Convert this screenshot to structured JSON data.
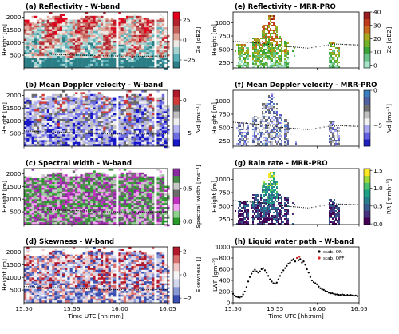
{
  "chart_data": [
    {
      "type": "heatmap",
      "title": "(a) Reflectivity - W-band",
      "ylabel": "Height [m]",
      "xlabel": "",
      "ylim": [
        0,
        2200
      ],
      "xlim": [
        "15:50",
        "16:05"
      ],
      "yticks": [
        "500",
        "1000",
        "1500",
        "2000"
      ],
      "xticks": [
        "",
        "",
        "",
        ""
      ],
      "colorbar": {
        "label": "Ze [dBZ]",
        "ticks": [
          "25",
          "0",
          "−25"
        ],
        "range": [
          -35,
          35
        ],
        "colors": [
          "#2b7e86",
          "#5ab0b8",
          "#a6d2d2",
          "#ece9e4",
          "#e0a69a",
          "#c4605a",
          "#b3232f",
          "#e3001d"
        ]
      },
      "dotted_line": {
        "x": [
          "15:50",
          "15:53",
          "15:56",
          "15:59",
          "16:02",
          "16:05"
        ],
        "y": [
          560,
          530,
          500,
          470,
          460,
          470
        ]
      }
    },
    {
      "type": "heatmap",
      "title": "(b) Mean Doppler velocity - W-band",
      "ylabel": "Height [m]",
      "xlabel": "",
      "ylim": [
        0,
        2200
      ],
      "xlim": [
        "15:50",
        "16:05"
      ],
      "yticks": [
        "500",
        "1000",
        "1500",
        "2000"
      ],
      "xticks": [
        "",
        "",
        "",
        ""
      ],
      "colorbar": {
        "label": "Vd [ms⁻¹]",
        "ticks": [
          "0",
          "−5"
        ],
        "range": [
          -7,
          1.5
        ],
        "colors": [
          "#1717c8",
          "#6e6ee0",
          "#b4b4f0",
          "#eeeeee",
          "#c0c0c0",
          "#6a6a6a",
          "#d03a3a",
          "#b2182b"
        ]
      },
      "dotted_line": {
        "x": [
          "15:50",
          "15:53",
          "15:56",
          "15:59",
          "16:02",
          "16:05"
        ],
        "y": [
          600,
          560,
          520,
          480,
          470,
          480
        ]
      }
    },
    {
      "type": "heatmap",
      "title": "(c) Spectral width - W-band",
      "ylabel": "Height [m]",
      "xlabel": "",
      "ylim": [
        0,
        2200
      ],
      "xlim": [
        "15:50",
        "16:05"
      ],
      "yticks": [
        "500",
        "1000",
        "1500",
        "2000"
      ],
      "xticks": [
        "",
        "",
        "",
        ""
      ],
      "colorbar": {
        "label": "Spectral width [ms⁻¹]",
        "ticks": [
          "0.5",
          "0.0"
        ],
        "range": [
          -0.05,
          0.8
        ],
        "colors": [
          "#2a9a2a",
          "#8fd08f",
          "#f2a0f2",
          "#c030c0",
          "#6c6c6c",
          "#c8c8c8",
          "#4a8a4a",
          "#8a2aa0"
        ]
      },
      "dotted_line": {
        "x": [
          "15:50",
          "15:53",
          "15:56",
          "15:59",
          "16:02",
          "16:05"
        ],
        "y": [
          620,
          580,
          540,
          500,
          490,
          500
        ]
      }
    },
    {
      "type": "heatmap",
      "title": "(d) Skewness - W-band",
      "ylabel": "Height [m]",
      "xlabel": "Time UTC [hh:mm]",
      "ylim": [
        0,
        2200
      ],
      "xlim": [
        "15:50",
        "16:05"
      ],
      "yticks": [
        "500",
        "1000",
        "1500",
        "2000"
      ],
      "xticks": [
        "15:50",
        "15:55",
        "16:00",
        "16:05"
      ],
      "colorbar": {
        "label": "Skewness []",
        "ticks": [
          "2",
          "0",
          "−2"
        ],
        "range": [
          -2.4,
          2.4
        ],
        "colors": [
          "#3a4fb0",
          "#8b98d6",
          "#d3d8ee",
          "#f5f5f5",
          "#f0c8c8",
          "#d87070",
          "#b2182b"
        ]
      },
      "dotted_line": {
        "x": [
          "15:50",
          "15:53",
          "15:56",
          "15:59",
          "16:02",
          "16:05"
        ],
        "y": [
          640,
          600,
          560,
          520,
          510,
          520
        ]
      }
    },
    {
      "type": "heatmap",
      "title": "(e) Reflectivity - MRR-PRO",
      "ylabel": "Height [m]",
      "xlabel": "",
      "ylim": [
        150,
        1200
      ],
      "xlim": [
        "15:50",
        "16:05"
      ],
      "yticks": [
        "250",
        "500",
        "750",
        "1000"
      ],
      "xticks": [
        "",
        "",
        "",
        ""
      ],
      "colorbar": {
        "label": "Ze [dBZ]",
        "ticks": [
          "40",
          "30",
          "20",
          "10",
          "0"
        ],
        "range": [
          -2,
          40
        ],
        "colors": [
          "#a6e3c7",
          "#6cc28b",
          "#3aa63a",
          "#73b32a",
          "#a8a81e",
          "#c8681e",
          "#c23a1e",
          "#9a1e1e"
        ]
      },
      "dotted_line": {
        "x": [
          "15:50",
          "15:53",
          "15:56",
          "15:59",
          "16:02",
          "16:05"
        ],
        "y": [
          650,
          620,
          560,
          520,
          600,
          580
        ]
      }
    },
    {
      "type": "heatmap",
      "title": "(f) Mean Doppler velocity - MRR-PRO",
      "ylabel": "Height [m]",
      "xlabel": "",
      "ylim": [
        150,
        1200
      ],
      "xlim": [
        "15:50",
        "16:05"
      ],
      "yticks": [
        "250",
        "500",
        "750",
        "1000"
      ],
      "xticks": [
        "",
        "",
        "",
        ""
      ],
      "colorbar": {
        "label": "Vd [ms⁻¹]",
        "ticks": [
          "0",
          "−5"
        ],
        "range": [
          -8,
          0
        ],
        "colors": [
          "#2020c0",
          "#6060e0",
          "#a8a8f0",
          "#f0f0f0",
          "#c0c0c0",
          "#707070",
          "#5060a0",
          "#3a80c0"
        ]
      },
      "dotted_line": {
        "x": [
          "15:50",
          "15:53",
          "15:56",
          "15:59",
          "16:02",
          "16:05"
        ],
        "y": [
          600,
          560,
          500,
          460,
          540,
          520
        ]
      }
    },
    {
      "type": "heatmap",
      "title": "(g) Rain rate - MRR-PRO",
      "ylabel": "Height [m]",
      "xlabel": "",
      "ylim": [
        150,
        1200
      ],
      "xlim": [
        "15:50",
        "16:05"
      ],
      "yticks": [
        "250",
        "500",
        "750",
        "1000"
      ],
      "xticks": [
        "",
        "",
        "",
        ""
      ],
      "colorbar": {
        "label": "RR [mmh⁻¹]",
        "ticks": [
          "1.5",
          "1.0",
          "0.5",
          "0.0"
        ],
        "range": [
          -0.02,
          1.55
        ],
        "colors": [
          "#440154",
          "#46327e",
          "#365c8d",
          "#277f8e",
          "#1fa187",
          "#4ac16d",
          "#a0da39",
          "#fde725"
        ]
      },
      "dotted_line": {
        "x": [
          "15:50",
          "15:53",
          "15:56",
          "15:59",
          "16:02",
          "16:05"
        ],
        "y": [
          600,
          560,
          500,
          460,
          540,
          520
        ]
      }
    },
    {
      "type": "scatter",
      "title": "(h) Liquid water path - W-band",
      "ylabel": "LWP [gm⁻²]",
      "xlabel": "Time UTC [hh:mm]",
      "ylim": [
        0,
        1000
      ],
      "xlim": [
        0,
        15
      ],
      "yticks": [
        "0",
        "200",
        "400",
        "600",
        "800",
        "1000"
      ],
      "xticks": [
        "15:50",
        "15:55",
        "16:00",
        "16:05"
      ],
      "legend": "top-right",
      "series": [
        {
          "name": "stab. ON",
          "color": "#000000",
          "points": [
            [
              0.0,
              160
            ],
            [
              0.2,
              130
            ],
            [
              0.4,
              110
            ],
            [
              0.6,
              100
            ],
            [
              0.8,
              95
            ],
            [
              1.0,
              110
            ],
            [
              1.2,
              150
            ],
            [
              1.4,
              200
            ],
            [
              1.6,
              280
            ],
            [
              1.8,
              380
            ],
            [
              2.0,
              460
            ],
            [
              2.2,
              520
            ],
            [
              2.4,
              560
            ],
            [
              2.6,
              590
            ],
            [
              2.8,
              560
            ],
            [
              3.0,
              540
            ],
            [
              3.2,
              560
            ],
            [
              3.4,
              600
            ],
            [
              3.6,
              620
            ],
            [
              3.8,
              580
            ],
            [
              4.0,
              540
            ],
            [
              4.2,
              480
            ],
            [
              4.4,
              420
            ],
            [
              4.6,
              380
            ],
            [
              4.8,
              350
            ],
            [
              5.0,
              340
            ],
            [
              5.2,
              360
            ],
            [
              5.4,
              420
            ],
            [
              5.6,
              480
            ],
            [
              5.8,
              540
            ],
            [
              6.0,
              580
            ],
            [
              6.2,
              620
            ],
            [
              6.4,
              660
            ],
            [
              6.6,
              700
            ],
            [
              6.8,
              720
            ],
            [
              7.0,
              760
            ],
            [
              7.2,
              780
            ],
            [
              7.4,
              740
            ],
            [
              7.6,
              800
            ],
            [
              7.8,
              760
            ],
            [
              8.0,
              780
            ],
            [
              8.2,
              720
            ],
            [
              8.4,
              740
            ],
            [
              8.6,
              680
            ],
            [
              8.8,
              600
            ],
            [
              9.0,
              540
            ],
            [
              9.2,
              460
            ],
            [
              9.4,
              400
            ],
            [
              9.6,
              370
            ],
            [
              9.8,
              350
            ],
            [
              10.0,
              330
            ],
            [
              10.2,
              290
            ],
            [
              10.4,
              260
            ],
            [
              10.6,
              240
            ],
            [
              10.8,
              230
            ],
            [
              11.0,
              210
            ],
            [
              11.2,
              200
            ],
            [
              11.4,
              180
            ],
            [
              11.6,
              170
            ],
            [
              11.8,
              170
            ],
            [
              12.0,
              160
            ],
            [
              12.2,
              150
            ],
            [
              12.4,
              150
            ],
            [
              12.6,
              140
            ],
            [
              12.8,
              140
            ],
            [
              13.0,
              150
            ],
            [
              13.2,
              140
            ],
            [
              13.4,
              130
            ],
            [
              13.6,
              140
            ],
            [
              13.8,
              130
            ],
            [
              14.0,
              140
            ],
            [
              14.2,
              130
            ],
            [
              14.4,
              125
            ],
            [
              14.6,
              130
            ],
            [
              14.8,
              120
            ]
          ]
        },
        {
          "name": "stab. OFF",
          "color": "#d62728",
          "points": [
            [
              7.6,
              800
            ],
            [
              7.9,
              820
            ]
          ]
        }
      ]
    }
  ]
}
